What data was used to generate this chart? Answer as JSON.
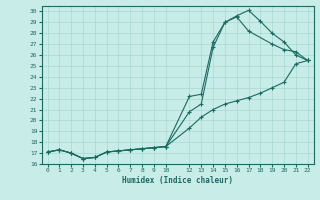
{
  "title": "",
  "xlabel": "Humidex (Indice chaleur)",
  "ylabel": "",
  "bg_color": "#c8ece8",
  "grid_color": "#a8d8d0",
  "line_color": "#1a6b60",
  "xlim": [
    -0.5,
    22.5
  ],
  "ylim": [
    16,
    30.5
  ],
  "xticks": [
    0,
    1,
    2,
    3,
    4,
    5,
    6,
    7,
    8,
    9,
    10,
    12,
    13,
    14,
    15,
    16,
    17,
    18,
    19,
    20,
    21,
    22
  ],
  "yticks": [
    16,
    17,
    18,
    19,
    20,
    21,
    22,
    23,
    24,
    25,
    26,
    27,
    28,
    29,
    30
  ],
  "curve1_x": [
    0,
    1,
    2,
    3,
    4,
    5,
    6,
    7,
    8,
    9,
    10,
    12,
    13,
    14,
    15,
    16,
    17,
    18,
    19,
    20,
    21,
    22
  ],
  "curve1_y": [
    17.1,
    17.3,
    17.0,
    16.5,
    16.6,
    17.1,
    17.2,
    17.3,
    17.4,
    17.5,
    17.6,
    19.3,
    20.3,
    21.0,
    21.5,
    21.8,
    22.1,
    22.5,
    23.0,
    23.5,
    25.2,
    25.5
  ],
  "curve2_x": [
    0,
    1,
    2,
    3,
    4,
    5,
    6,
    7,
    8,
    9,
    10,
    12,
    13,
    14,
    15,
    16,
    17,
    19,
    20,
    21,
    22
  ],
  "curve2_y": [
    17.1,
    17.3,
    17.0,
    16.5,
    16.6,
    17.1,
    17.2,
    17.3,
    17.4,
    17.5,
    17.6,
    22.2,
    22.4,
    27.2,
    29.0,
    29.5,
    28.2,
    27.0,
    26.5,
    26.3,
    25.5
  ],
  "curve3_x": [
    0,
    1,
    2,
    3,
    4,
    5,
    6,
    7,
    8,
    9,
    10,
    12,
    13,
    14,
    15,
    16,
    17,
    18,
    19,
    20,
    21,
    22
  ],
  "curve3_y": [
    17.1,
    17.3,
    17.0,
    16.5,
    16.6,
    17.1,
    17.2,
    17.3,
    17.4,
    17.5,
    17.6,
    20.8,
    21.5,
    26.7,
    29.0,
    29.6,
    30.1,
    29.1,
    28.0,
    27.2,
    26.0,
    25.5
  ],
  "marker": "+",
  "markersize": 3,
  "linewidth": 0.8
}
